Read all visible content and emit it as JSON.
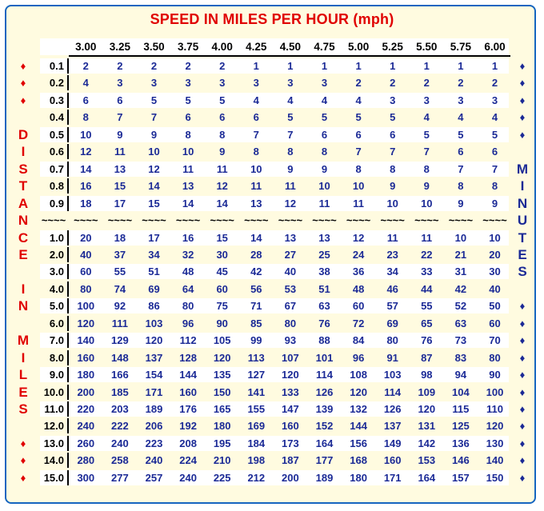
{
  "title": "SPEED IN MILES PER HOUR (mph)",
  "speeds": [
    "3.00",
    "3.25",
    "3.50",
    "3.75",
    "4.00",
    "4.25",
    "4.50",
    "4.75",
    "5.00",
    "5.25",
    "5.50",
    "5.75",
    "6.00"
  ],
  "separator": "~~~~",
  "left_vertical_label": [
    "♦",
    "♦",
    "♦",
    "",
    "D",
    "I",
    "S",
    "T",
    "A",
    "N",
    "C",
    "E",
    "",
    "I",
    "N",
    "",
    "M",
    "I",
    "L",
    "E",
    "S",
    "",
    "♦",
    "♦",
    "♦"
  ],
  "right_vertical_label": [
    "♦",
    "♦",
    "♦",
    "♦",
    "♦",
    "",
    "M",
    "I",
    "N",
    "U",
    "T",
    "E",
    "S",
    "",
    "♦",
    "♦",
    "♦",
    "♦",
    "♦",
    "♦",
    "♦",
    "♦",
    "♦",
    "♦",
    "♦"
  ],
  "colors": {
    "title": "#e00000",
    "values": "#1b2a96",
    "frame": "#1565c0",
    "background": "#fffbe0"
  },
  "rows": [
    {
      "distance": "0.1",
      "minutes": [
        "2",
        "2",
        "2",
        "2",
        "2",
        "1",
        "1",
        "1",
        "1",
        "1",
        "1",
        "1",
        "1"
      ]
    },
    {
      "distance": "0.2",
      "minutes": [
        "4",
        "3",
        "3",
        "3",
        "3",
        "3",
        "3",
        "3",
        "2",
        "2",
        "2",
        "2",
        "2"
      ]
    },
    {
      "distance": "0.3",
      "minutes": [
        "6",
        "6",
        "5",
        "5",
        "5",
        "4",
        "4",
        "4",
        "4",
        "3",
        "3",
        "3",
        "3"
      ]
    },
    {
      "distance": "0.4",
      "minutes": [
        "8",
        "7",
        "7",
        "6",
        "6",
        "6",
        "5",
        "5",
        "5",
        "5",
        "4",
        "4",
        "4"
      ]
    },
    {
      "distance": "0.5",
      "minutes": [
        "10",
        "9",
        "9",
        "8",
        "8",
        "7",
        "7",
        "6",
        "6",
        "6",
        "5",
        "5",
        "5"
      ]
    },
    {
      "distance": "0.6",
      "minutes": [
        "12",
        "11",
        "10",
        "10",
        "9",
        "8",
        "8",
        "8",
        "7",
        "7",
        "7",
        "6",
        "6"
      ]
    },
    {
      "distance": "0.7",
      "minutes": [
        "14",
        "13",
        "12",
        "11",
        "11",
        "10",
        "9",
        "9",
        "8",
        "8",
        "8",
        "7",
        "7"
      ]
    },
    {
      "distance": "0.8",
      "minutes": [
        "16",
        "15",
        "14",
        "13",
        "12",
        "11",
        "11",
        "10",
        "10",
        "9",
        "9",
        "8",
        "8"
      ]
    },
    {
      "distance": "0.9",
      "minutes": [
        "18",
        "17",
        "15",
        "14",
        "14",
        "13",
        "12",
        "11",
        "11",
        "10",
        "10",
        "9",
        "9"
      ]
    },
    {
      "separator": true
    },
    {
      "distance": "1.0",
      "minutes": [
        "20",
        "18",
        "17",
        "16",
        "15",
        "14",
        "13",
        "13",
        "12",
        "11",
        "11",
        "10",
        "10"
      ]
    },
    {
      "distance": "2.0",
      "minutes": [
        "40",
        "37",
        "34",
        "32",
        "30",
        "28",
        "27",
        "25",
        "24",
        "23",
        "22",
        "21",
        "20"
      ]
    },
    {
      "distance": "3.0",
      "minutes": [
        "60",
        "55",
        "51",
        "48",
        "45",
        "42",
        "40",
        "38",
        "36",
        "34",
        "33",
        "31",
        "30"
      ]
    },
    {
      "distance": "4.0",
      "minutes": [
        "80",
        "74",
        "69",
        "64",
        "60",
        "56",
        "53",
        "51",
        "48",
        "46",
        "44",
        "42",
        "40"
      ]
    },
    {
      "distance": "5.0",
      "minutes": [
        "100",
        "92",
        "86",
        "80",
        "75",
        "71",
        "67",
        "63",
        "60",
        "57",
        "55",
        "52",
        "50"
      ]
    },
    {
      "distance": "6.0",
      "minutes": [
        "120",
        "111",
        "103",
        "96",
        "90",
        "85",
        "80",
        "76",
        "72",
        "69",
        "65",
        "63",
        "60"
      ]
    },
    {
      "distance": "7.0",
      "minutes": [
        "140",
        "129",
        "120",
        "112",
        "105",
        "99",
        "93",
        "88",
        "84",
        "80",
        "76",
        "73",
        "70"
      ]
    },
    {
      "distance": "8.0",
      "minutes": [
        "160",
        "148",
        "137",
        "128",
        "120",
        "113",
        "107",
        "101",
        "96",
        "91",
        "87",
        "83",
        "80"
      ]
    },
    {
      "distance": "9.0",
      "minutes": [
        "180",
        "166",
        "154",
        "144",
        "135",
        "127",
        "120",
        "114",
        "108",
        "103",
        "98",
        "94",
        "90"
      ]
    },
    {
      "distance": "10.0",
      "minutes": [
        "200",
        "185",
        "171",
        "160",
        "150",
        "141",
        "133",
        "126",
        "120",
        "114",
        "109",
        "104",
        "100"
      ]
    },
    {
      "distance": "11.0",
      "minutes": [
        "220",
        "203",
        "189",
        "176",
        "165",
        "155",
        "147",
        "139",
        "132",
        "126",
        "120",
        "115",
        "110"
      ]
    },
    {
      "distance": "12.0",
      "minutes": [
        "240",
        "222",
        "206",
        "192",
        "180",
        "169",
        "160",
        "152",
        "144",
        "137",
        "131",
        "125",
        "120"
      ]
    },
    {
      "distance": "13.0",
      "minutes": [
        "260",
        "240",
        "223",
        "208",
        "195",
        "184",
        "173",
        "164",
        "156",
        "149",
        "142",
        "136",
        "130"
      ]
    },
    {
      "distance": "14.0",
      "minutes": [
        "280",
        "258",
        "240",
        "224",
        "210",
        "198",
        "187",
        "177",
        "168",
        "160",
        "153",
        "146",
        "140"
      ]
    },
    {
      "distance": "15.0",
      "minutes": [
        "300",
        "277",
        "257",
        "240",
        "225",
        "212",
        "200",
        "189",
        "180",
        "171",
        "164",
        "157",
        "150"
      ]
    }
  ]
}
